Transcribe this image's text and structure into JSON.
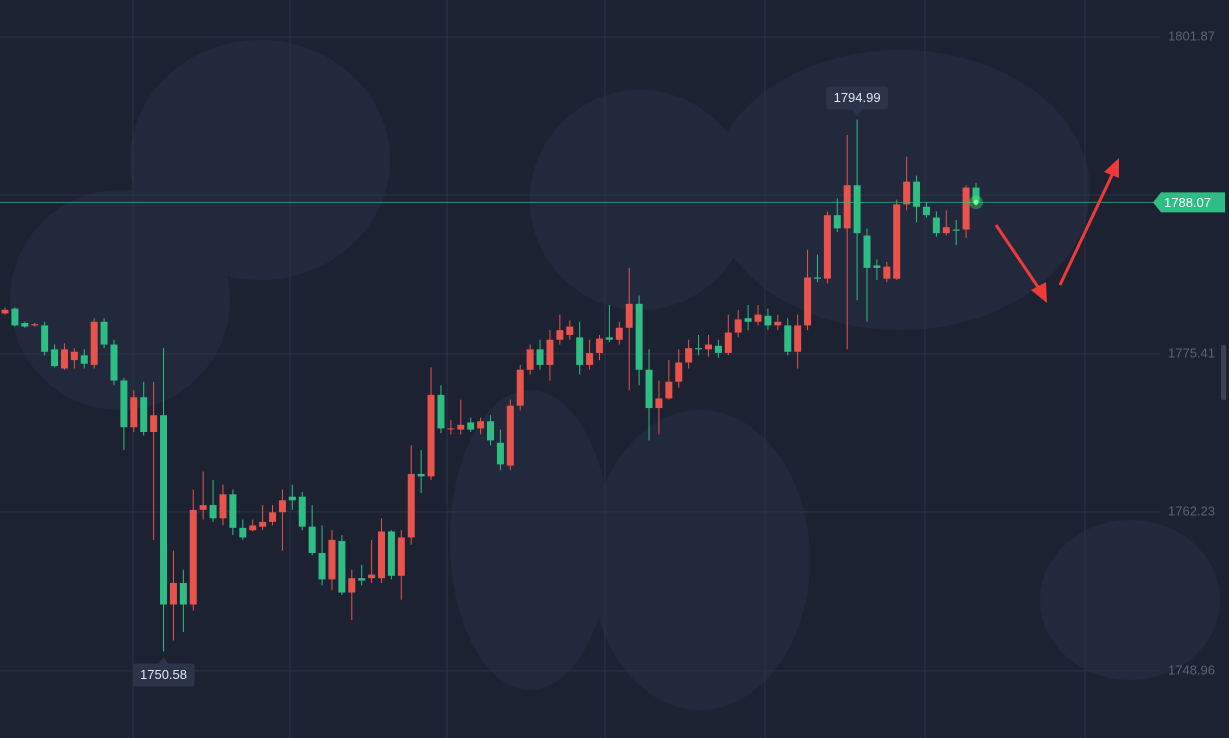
{
  "chart_data": {
    "type": "candlestick",
    "ylim": [
      1743.36,
      1804.96
    ],
    "yticks": [
      1748.96,
      1762.23,
      1775.41,
      1801.87
    ],
    "grid": true,
    "up_color": "#e8534c",
    "down_color": "#2ebd85",
    "last_price": 1788.07,
    "open": [
      1778.8,
      1779.2,
      1778.0,
      1777.8,
      1777.8,
      1775.8,
      1774.2,
      1774.9,
      1775.3,
      1774.5,
      1778.1,
      1776.2,
      1773.2,
      1769.3,
      1771.8,
      1768.9,
      1770.3,
      1754.5,
      1756.3,
      1754.5,
      1762.4,
      1762.8,
      1761.7,
      1763.7,
      1760.9,
      1760.7,
      1761.0,
      1761.4,
      1762.2,
      1763.5,
      1763.5,
      1761.0,
      1758.8,
      1756.6,
      1759.8,
      1755.5,
      1756.7,
      1756.7,
      1756.7,
      1760.6,
      1756.9,
      1760.1,
      1765.4,
      1765.2,
      1772.0,
      1769.2,
      1769.1,
      1769.7,
      1769.2,
      1769.8,
      1768.0,
      1766.1,
      1771.1,
      1774.1,
      1775.8,
      1774.5,
      1776.6,
      1777.0,
      1776.8,
      1774.5,
      1775.5,
      1776.8,
      1776.6,
      1777.6,
      1779.6,
      1774.1,
      1770.9,
      1771.7,
      1773.1,
      1774.7,
      1775.9,
      1775.8,
      1776.1,
      1775.5,
      1777.2,
      1778.4,
      1778.1,
      1778.6,
      1777.8,
      1777.8,
      1775.6,
      1777.8,
      1781.8,
      1781.7,
      1787.0,
      1785.9,
      1789.5,
      1785.3,
      1782.8,
      1781.7,
      1781.7,
      1787.9,
      1789.8,
      1787.7,
      1786.8,
      1785.5,
      1785.8,
      1785.8,
      1789.3
    ],
    "high": [
      1779.3,
      1779.3,
      1778.1,
      1778.0,
      1778.1,
      1776.2,
      1776.3,
      1775.9,
      1775.8,
      1778.4,
      1778.4,
      1776.6,
      1773.4,
      1772.4,
      1773.1,
      1773.1,
      1775.9,
      1759.0,
      1757.4,
      1764.1,
      1765.6,
      1764.9,
      1764.5,
      1764.1,
      1761.6,
      1761.6,
      1762.8,
      1762.8,
      1764.1,
      1764.5,
      1763.9,
      1762.8,
      1761.1,
      1760.7,
      1760.3,
      1757.4,
      1757.8,
      1759.9,
      1761.7,
      1760.7,
      1760.7,
      1767.8,
      1767.4,
      1774.3,
      1772.8,
      1769.9,
      1771.6,
      1770.1,
      1770.1,
      1770.3,
      1769.1,
      1771.6,
      1774.5,
      1776.2,
      1776.6,
      1777.4,
      1778.7,
      1778.2,
      1778.1,
      1776.6,
      1777.0,
      1779.5,
      1778.1,
      1782.6,
      1780.3,
      1775.8,
      1773.2,
      1774.9,
      1775.8,
      1776.6,
      1777.0,
      1777.0,
      1776.6,
      1778.7,
      1779.1,
      1779.5,
      1779.5,
      1779.2,
      1778.7,
      1778.4,
      1778.7,
      1784.1,
      1783.7,
      1787.3,
      1788.4,
      1793.7,
      1794.99,
      1785.9,
      1783.3,
      1783.1,
      1788.3,
      1791.9,
      1790.3,
      1788.1,
      1787.3,
      1787.4,
      1786.6,
      1789.5,
      1789.7
    ],
    "low": [
      1778.7,
      1777.7,
      1777.6,
      1777.7,
      1775.3,
      1774.3,
      1774.1,
      1774.2,
      1774.2,
      1774.2,
      1775.9,
      1772.8,
      1767.4,
      1768.9,
      1768.6,
      1759.9,
      1750.58,
      1751.5,
      1752.2,
      1754.0,
      1761.6,
      1761.4,
      1761.1,
      1760.3,
      1759.9,
      1760.6,
      1760.7,
      1761.1,
      1759.0,
      1762.4,
      1760.7,
      1758.6,
      1756.1,
      1755.7,
      1755.3,
      1753.2,
      1756.1,
      1756.3,
      1756.3,
      1756.6,
      1754.9,
      1759.5,
      1763.8,
      1764.9,
      1768.8,
      1768.7,
      1768.7,
      1768.9,
      1768.7,
      1767.8,
      1765.7,
      1765.7,
      1770.7,
      1773.7,
      1774.1,
      1773.2,
      1776.2,
      1776.6,
      1773.7,
      1774.1,
      1774.9,
      1776.4,
      1776.2,
      1772.4,
      1772.8,
      1768.2,
      1768.7,
      1771.6,
      1772.6,
      1774.2,
      1775.3,
      1775.2,
      1775.1,
      1775.3,
      1776.8,
      1777.4,
      1777.8,
      1777.4,
      1777.4,
      1775.3,
      1774.2,
      1777.4,
      1781.4,
      1781.3,
      1785.6,
      1775.8,
      1779.9,
      1778.1,
      1781.6,
      1781.4,
      1781.6,
      1787.4,
      1786.4,
      1786.8,
      1785.2,
      1785.3,
      1784.5,
      1785.1,
      1787.8
    ],
    "close": [
      1779.1,
      1777.8,
      1777.7,
      1777.9,
      1775.6,
      1774.4,
      1775.8,
      1775.6,
      1774.6,
      1778.1,
      1776.2,
      1773.2,
      1769.3,
      1771.8,
      1768.9,
      1770.3,
      1754.5,
      1756.3,
      1754.5,
      1762.4,
      1762.8,
      1761.7,
      1763.7,
      1760.9,
      1760.1,
      1761.1,
      1761.4,
      1762.2,
      1763.2,
      1763.2,
      1761.0,
      1758.8,
      1756.6,
      1759.9,
      1755.5,
      1756.7,
      1756.5,
      1757.0,
      1760.6,
      1756.9,
      1760.1,
      1765.4,
      1765.2,
      1772.0,
      1769.2,
      1769.2,
      1769.5,
      1769.1,
      1769.8,
      1768.2,
      1766.2,
      1771.1,
      1774.1,
      1775.8,
      1774.5,
      1776.6,
      1777.4,
      1777.7,
      1774.5,
      1775.5,
      1776.7,
      1776.6,
      1777.6,
      1779.6,
      1774.1,
      1770.9,
      1771.7,
      1773.1,
      1774.7,
      1775.9,
      1775.8,
      1776.2,
      1775.5,
      1777.2,
      1778.3,
      1778.1,
      1778.7,
      1777.8,
      1778.1,
      1775.6,
      1777.8,
      1781.8,
      1781.7,
      1787.0,
      1785.9,
      1789.5,
      1785.5,
      1782.6,
      1782.6,
      1782.7,
      1787.9,
      1789.8,
      1787.7,
      1787.0,
      1785.5,
      1786.0,
      1785.7,
      1789.3,
      1788.07
    ]
  }
}
